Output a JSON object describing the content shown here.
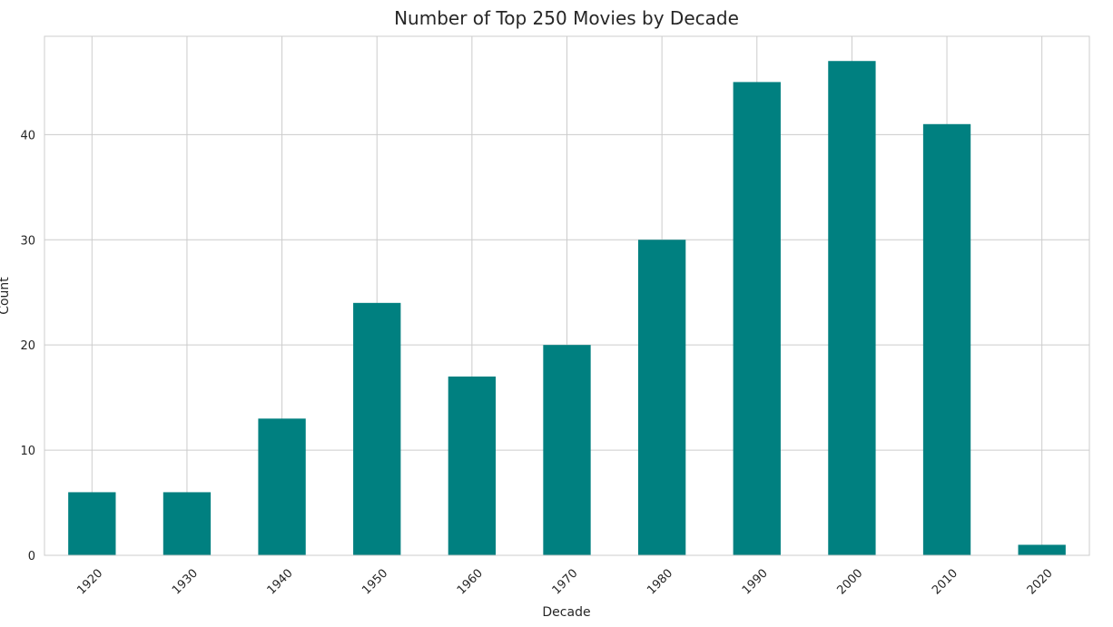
{
  "chart_data": {
    "type": "bar",
    "title": "Number of Top 250 Movies by Decade",
    "xlabel": "Decade",
    "ylabel": "Count",
    "categories": [
      "1920",
      "1930",
      "1940",
      "1950",
      "1960",
      "1970",
      "1980",
      "1990",
      "2000",
      "2010",
      "2020"
    ],
    "values": [
      6,
      6,
      13,
      24,
      17,
      20,
      30,
      45,
      47,
      41,
      1
    ],
    "ylim": [
      0,
      49.35
    ],
    "yticks": [
      0,
      10,
      20,
      30,
      40
    ],
    "grid": true,
    "legend": "none",
    "bar_color": "#008080"
  }
}
